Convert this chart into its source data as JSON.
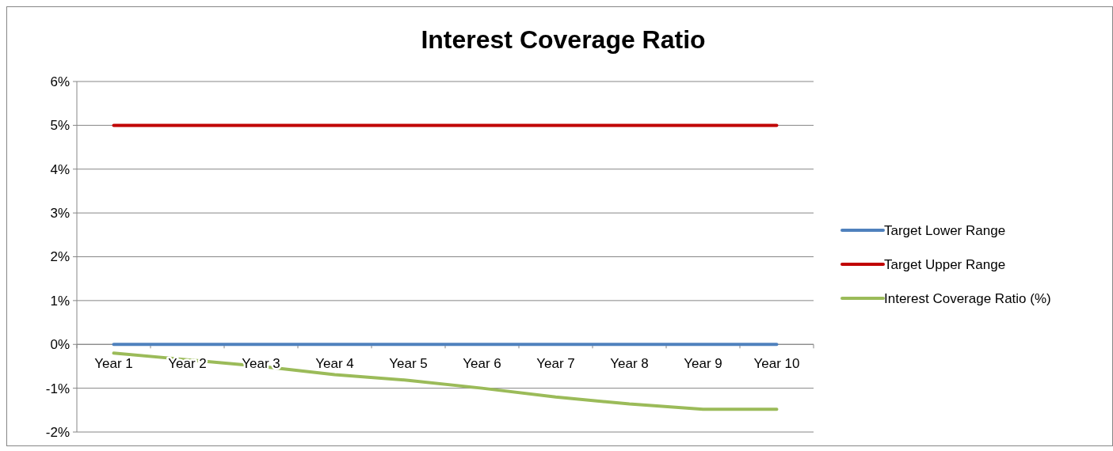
{
  "chart_data": {
    "type": "line",
    "title": "Interest Coverage Ratio",
    "categories": [
      "Year 1",
      "Year 2",
      "Year 3",
      "Year 4",
      "Year 5",
      "Year 6",
      "Year 7",
      "Year 8",
      "Year 9",
      "Year 10"
    ],
    "series": [
      {
        "name": "Target Lower Range",
        "color": "#4f81bd",
        "values": [
          0,
          0,
          0,
          0,
          0,
          0,
          0,
          0,
          0,
          0
        ]
      },
      {
        "name": "Target Upper Range",
        "color": "#c00000",
        "values": [
          5,
          5,
          5,
          5,
          5,
          5,
          5,
          5,
          5,
          5
        ]
      },
      {
        "name": "Interest Coverage Ratio (%)",
        "color": "#9bbb59",
        "values": [
          -0.2,
          -0.35,
          -0.5,
          -0.69,
          -0.82,
          -1,
          -1.2,
          -1.36,
          -1.48,
          -1.48
        ]
      }
    ],
    "ylim": [
      -2,
      6
    ],
    "yticks": [
      {
        "value": -2,
        "label": "-2%"
      },
      {
        "value": -1,
        "label": "-1%"
      },
      {
        "value": 0,
        "label": "0%"
      },
      {
        "value": 1,
        "label": "1%"
      },
      {
        "value": 2,
        "label": "2%"
      },
      {
        "value": 3,
        "label": "3%"
      },
      {
        "value": 4,
        "label": "4%"
      },
      {
        "value": 5,
        "label": "5%"
      },
      {
        "value": 6,
        "label": "6%"
      }
    ],
    "grid": "y",
    "legend": "right",
    "marker": "none",
    "line_style": "solid"
  }
}
